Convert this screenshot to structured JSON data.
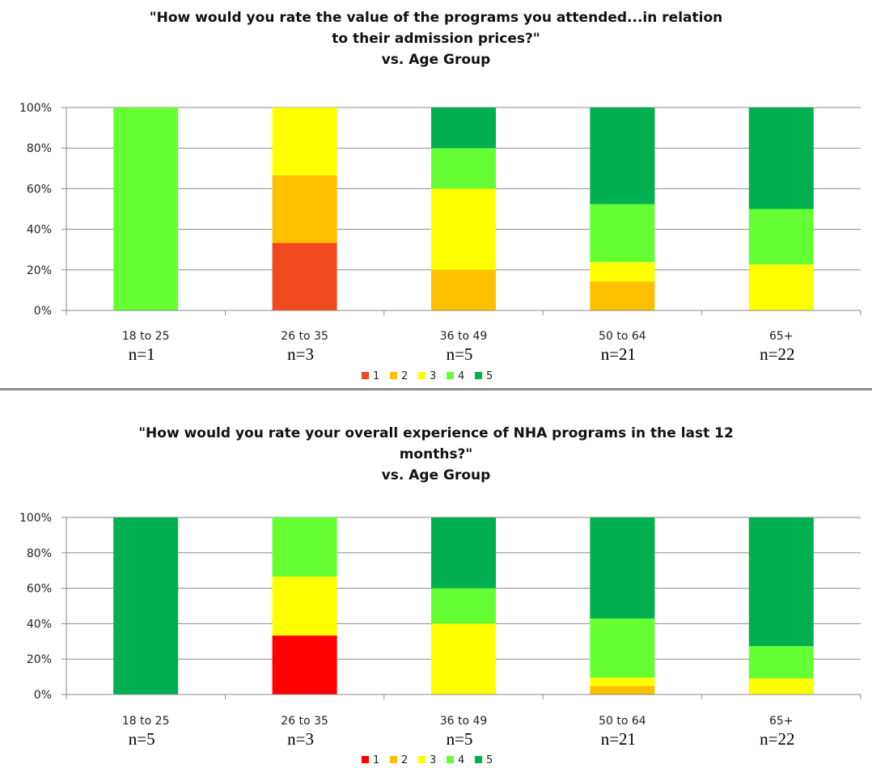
{
  "chart_data": [
    {
      "type": "bar",
      "stacked": true,
      "title_lines": [
        "\"How would you rate the value of the programs you attended...in relation",
        "to their admission prices?\"",
        "vs. Age Group"
      ],
      "categories": [
        "18 to 25",
        "26 to 35",
        "36 to 49",
        "50 to 64",
        "65+"
      ],
      "n_labels": [
        "n=1",
        "n=3",
        "n=5",
        "n=21",
        "n=22"
      ],
      "ylim": [
        0,
        100
      ],
      "yticks": [
        "0%",
        "20%",
        "40%",
        "60%",
        "80%",
        "100%"
      ],
      "grid": true,
      "legend_position": "bottom",
      "series": [
        {
          "name": "1",
          "color": "#f04a1e",
          "values": [
            0,
            33.3,
            0,
            0,
            0
          ]
        },
        {
          "name": "2",
          "color": "#ffc000",
          "values": [
            0,
            33.3,
            20,
            14.3,
            0
          ]
        },
        {
          "name": "3",
          "color": "#ffff00",
          "values": [
            0,
            33.4,
            40,
            9.5,
            22.7
          ]
        },
        {
          "name": "4",
          "color": "#66ff33",
          "values": [
            100,
            0,
            20,
            28.6,
            27.3
          ]
        },
        {
          "name": "5",
          "color": "#00b050",
          "values": [
            0,
            0,
            20,
            47.6,
            50
          ]
        }
      ]
    },
    {
      "type": "bar",
      "stacked": true,
      "title_lines": [
        "\"How would you rate your overall experience of NHA programs in the last 12",
        "months?\"",
        "vs. Age Group"
      ],
      "categories": [
        "18 to 25",
        "26 to 35",
        "36 to 49",
        "50 to 64",
        "65+"
      ],
      "n_labels": [
        "n=5",
        "n=3",
        "n=5",
        "n=21",
        "n=22"
      ],
      "ylim": [
        0,
        100
      ],
      "yticks": [
        "0%",
        "20%",
        "40%",
        "60%",
        "80%",
        "100%"
      ],
      "grid": true,
      "legend_position": "bottom",
      "series": [
        {
          "name": "1",
          "color": "#ff0000",
          "values": [
            0,
            33.3,
            0,
            0,
            0
          ]
        },
        {
          "name": "2",
          "color": "#ffc000",
          "values": [
            0,
            0,
            0,
            4.8,
            0
          ]
        },
        {
          "name": "3",
          "color": "#ffff00",
          "values": [
            0,
            33.3,
            40,
            4.8,
            9.1
          ]
        },
        {
          "name": "4",
          "color": "#66ff33",
          "values": [
            0,
            33.4,
            20,
            33.3,
            18.2
          ]
        },
        {
          "name": "5",
          "color": "#00b050",
          "values": [
            100,
            0,
            40,
            57.1,
            72.7
          ]
        }
      ]
    }
  ]
}
